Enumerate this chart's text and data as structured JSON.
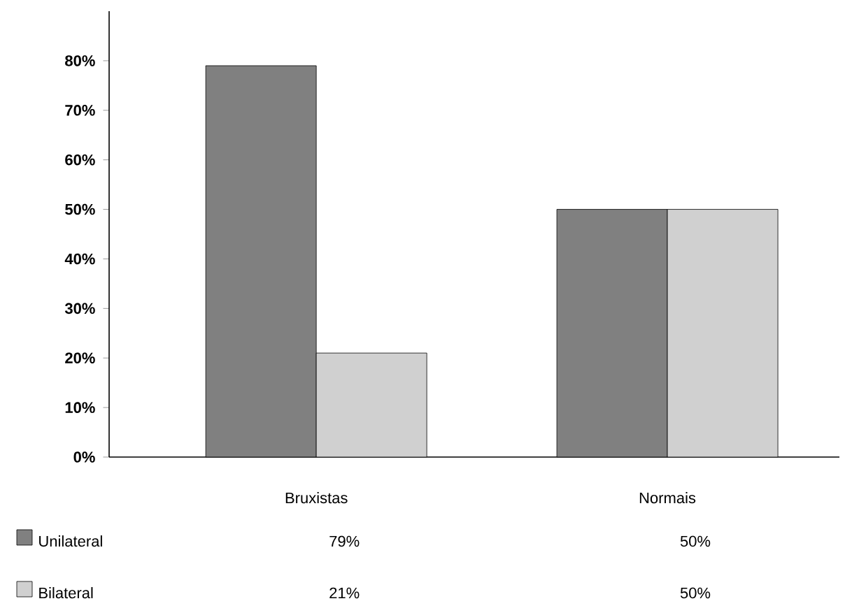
{
  "chart_data": {
    "type": "bar",
    "categories": [
      "Bruxistas",
      "Normais"
    ],
    "series": [
      {
        "name": "Unilateral",
        "color": "#808080",
        "values": [
          79,
          50
        ],
        "value_labels": [
          "79%",
          "50%"
        ]
      },
      {
        "name": "Bilateral",
        "color": "#d0d0d0",
        "values": [
          21,
          50
        ],
        "value_labels": [
          "21%",
          "50%"
        ]
      }
    ],
    "ylim": [
      0,
      90
    ],
    "yticks": [
      {
        "value": 0,
        "label": "0%"
      },
      {
        "value": 10,
        "label": "10%"
      },
      {
        "value": 20,
        "label": "20%"
      },
      {
        "value": 30,
        "label": "30%"
      },
      {
        "value": 40,
        "label": "40%"
      },
      {
        "value": 50,
        "label": "50%"
      },
      {
        "value": 60,
        "label": "60%"
      },
      {
        "value": 70,
        "label": "70%"
      },
      {
        "value": 80,
        "label": "80%"
      }
    ],
    "grid": false,
    "legend": "bottom"
  }
}
